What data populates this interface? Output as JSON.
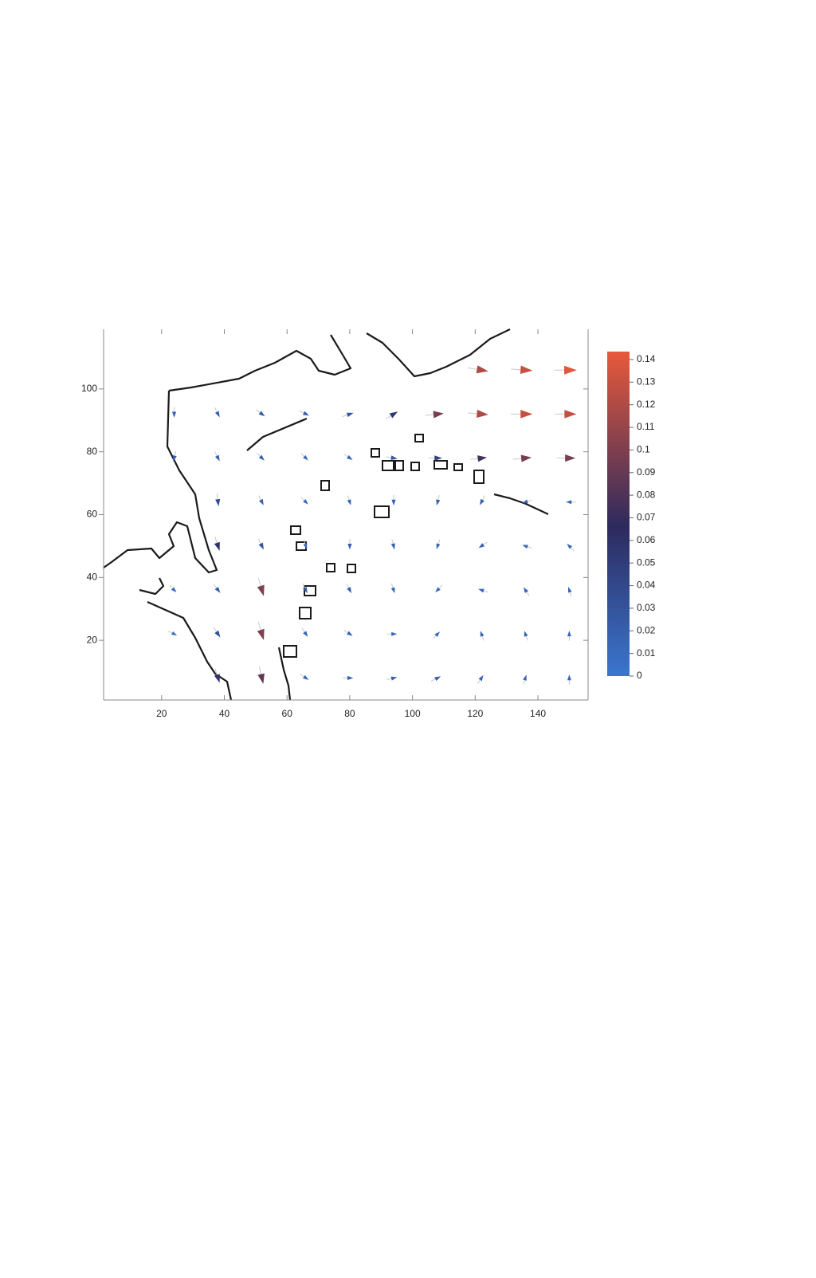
{
  "chart_data": {
    "type": "quiver",
    "xlim": [
      1.5,
      156
    ],
    "ylim": [
      1,
      119
    ],
    "xticks": [
      20,
      40,
      60,
      80,
      100,
      120,
      140
    ],
    "yticks": [
      20,
      40,
      60,
      80,
      100
    ],
    "colorbar_lim": [
      0,
      0.1435
    ],
    "colorbar_ticks": [
      0,
      0.01,
      0.02,
      0.03,
      0.04,
      0.05,
      0.06,
      0.07,
      0.08,
      0.09,
      0.1,
      0.11,
      0.12,
      0.13,
      0.14
    ],
    "colormap": [
      "#3a76cf",
      "#2d2a5e",
      "#e8593b"
    ],
    "x": [
      122,
      136,
      150,
      24,
      38,
      52,
      66,
      80,
      94,
      108,
      122,
      136,
      150,
      24,
      38,
      52,
      66,
      80,
      94,
      108,
      122,
      136,
      150,
      38,
      52,
      66,
      80,
      94,
      108,
      122,
      136,
      150,
      38,
      52,
      66,
      80,
      94,
      108,
      122,
      136,
      150,
      24,
      38,
      52,
      66,
      80,
      94,
      108,
      122,
      136,
      150,
      24,
      38,
      52,
      66,
      80,
      94,
      108,
      122,
      136,
      150,
      38,
      52,
      66,
      80,
      94,
      108,
      122,
      136,
      150
    ],
    "y": [
      106,
      106,
      106,
      92,
      92,
      92,
      92,
      92,
      92,
      92,
      92,
      92,
      92,
      78,
      78,
      78,
      78,
      78,
      78,
      78,
      78,
      78,
      78,
      64,
      64,
      64,
      64,
      64,
      64,
      64,
      64,
      64,
      50,
      50,
      50,
      50,
      50,
      50,
      50,
      50,
      50,
      36,
      36,
      36,
      36,
      36,
      36,
      36,
      36,
      36,
      36,
      22,
      22,
      22,
      22,
      22,
      22,
      22,
      22,
      22,
      22,
      8,
      8,
      8,
      8,
      8,
      8,
      8,
      8,
      8
    ],
    "u": [
      0.12,
      0.13,
      0.14,
      0,
      0.01,
      0.02,
      0.02,
      0.03,
      0.05,
      0.1,
      0.12,
      0.13,
      0.13,
      -0.005,
      0.01,
      0.015,
      0.01,
      0.015,
      0.03,
      0.05,
      0.08,
      0.1,
      0.1,
      0.005,
      0.01,
      0.01,
      0.005,
      0,
      -0.005,
      -0.01,
      -0.015,
      -0.015,
      0.02,
      0.015,
      0.005,
      0,
      0.005,
      -0.005,
      -0.015,
      -0.015,
      -0.01,
      0.01,
      0.015,
      0.03,
      0.01,
      0.01,
      0.005,
      -0.01,
      -0.015,
      -0.01,
      -0.005,
      0.01,
      0.02,
      0.03,
      0.01,
      0.015,
      0.015,
      0.01,
      -0.005,
      -0.005,
      0,
      0.02,
      0.02,
      0.015,
      0.02,
      0.02,
      0.02,
      0.01,
      0.005,
      0
    ],
    "v": [
      -0.02,
      -0.01,
      0,
      -0.02,
      -0.02,
      -0.015,
      -0.01,
      0.01,
      0.03,
      0.01,
      -0.01,
      0,
      0,
      -0.02,
      -0.02,
      -0.015,
      -0.01,
      -0.01,
      -0.005,
      0,
      0.01,
      0.01,
      0,
      -0.04,
      -0.02,
      -0.01,
      -0.015,
      -0.02,
      -0.02,
      -0.02,
      -0.005,
      0,
      -0.06,
      -0.03,
      -0.015,
      -0.02,
      -0.02,
      -0.015,
      -0.01,
      0.005,
      0.01,
      -0.01,
      -0.02,
      -0.1,
      -0.02,
      -0.02,
      -0.015,
      -0.01,
      0.005,
      0.015,
      0.015,
      -0.005,
      -0.03,
      -0.1,
      -0.015,
      -0.01,
      0,
      0.01,
      0.015,
      0.015,
      0.015,
      -0.06,
      -0.09,
      -0.01,
      0,
      0.005,
      0.01,
      0.015,
      0.015,
      0.015
    ]
  }
}
